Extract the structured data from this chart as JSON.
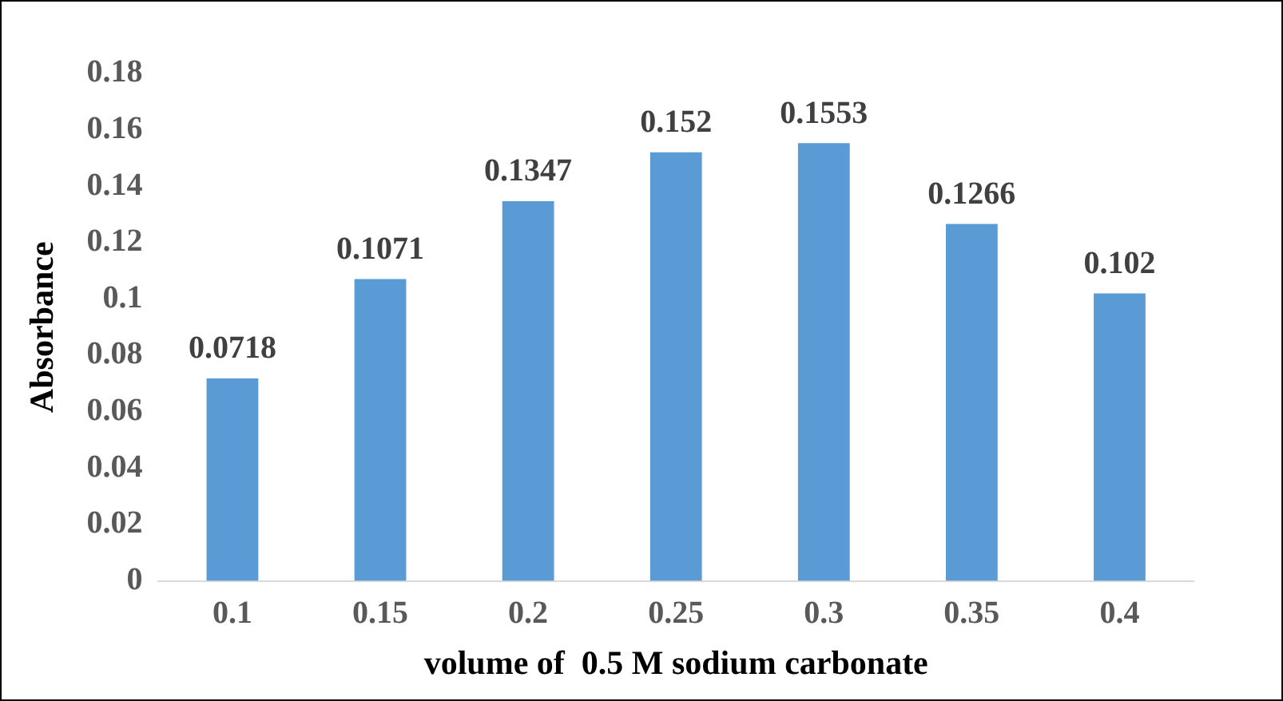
{
  "chart_data": {
    "type": "bar",
    "xlabel": "volume of  0.5 M sodium carbonate",
    "ylabel": "Absorbance",
    "categories": [
      "0.1",
      "0.15",
      "0.2",
      "0.25",
      "0.3",
      "0.35",
      "0.4"
    ],
    "values": [
      0.0718,
      0.1071,
      0.1347,
      0.152,
      0.1553,
      0.1266,
      0.102
    ],
    "color": "#5b9bd5",
    "ylim": [
      0,
      0.18
    ],
    "yticks": [
      0,
      0.02,
      0.04,
      0.06,
      0.08,
      0.1,
      0.12,
      0.14,
      0.16,
      0.18
    ],
    "data_labels": true,
    "grid": false,
    "legend": false
  }
}
